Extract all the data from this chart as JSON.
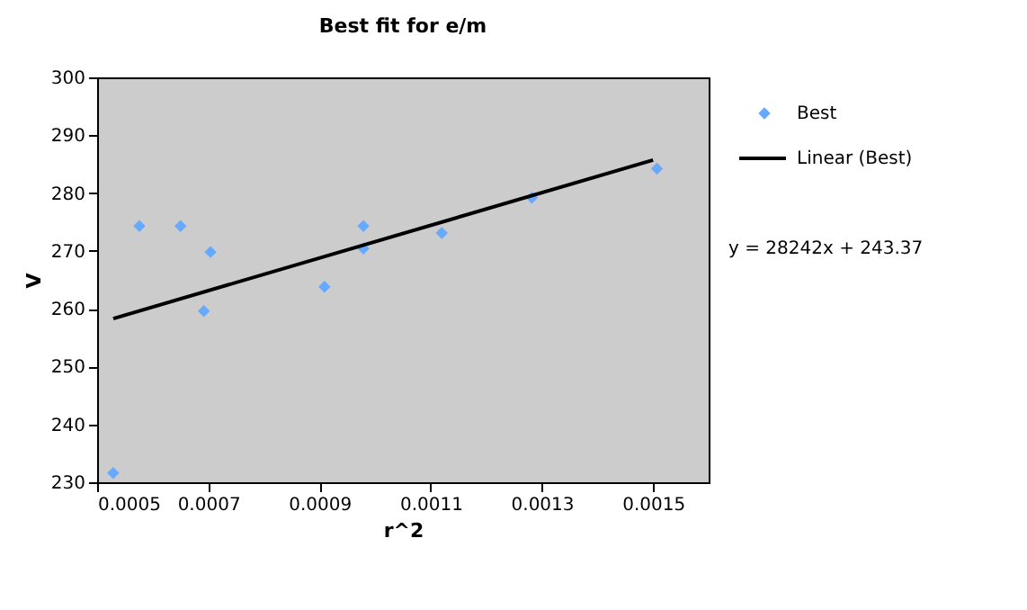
{
  "chart_data": {
    "type": "scatter",
    "title": "Best fit for e/m",
    "xlabel": "r^2",
    "ylabel": "V",
    "xlim": [
      0.0005,
      0.0016
    ],
    "xticks": [
      0.0005,
      0.0007,
      0.0009,
      0.0011,
      0.0013,
      0.0015
    ],
    "ylim": [
      230,
      300
    ],
    "yticks": [
      230,
      240,
      250,
      260,
      270,
      280,
      290,
      300
    ],
    "grid": false,
    "legend": "right",
    "marker": "diamond",
    "series": [
      {
        "name": "Best",
        "color": "#66aaff",
        "x": [
          0.000529,
          0.000576,
          0.00065,
          0.000692,
          0.000704,
          0.000909,
          0.000979,
          0.000979,
          0.00112,
          0.001282,
          0.001507
        ],
        "values": [
          231.6,
          274.3,
          274.3,
          259.6,
          269.8,
          263.8,
          274.3,
          270.4,
          273.1,
          279.2,
          284.2
        ]
      },
      {
        "name": "Linear (Best)",
        "type": "line",
        "color": "#000000",
        "line_style": "solid",
        "marker": "none",
        "x": [
          0.000529,
          0.0015
        ],
        "values": [
          258.3,
          285.7
        ]
      }
    ],
    "annotations": [
      "y = 28242x + 243.37"
    ]
  }
}
